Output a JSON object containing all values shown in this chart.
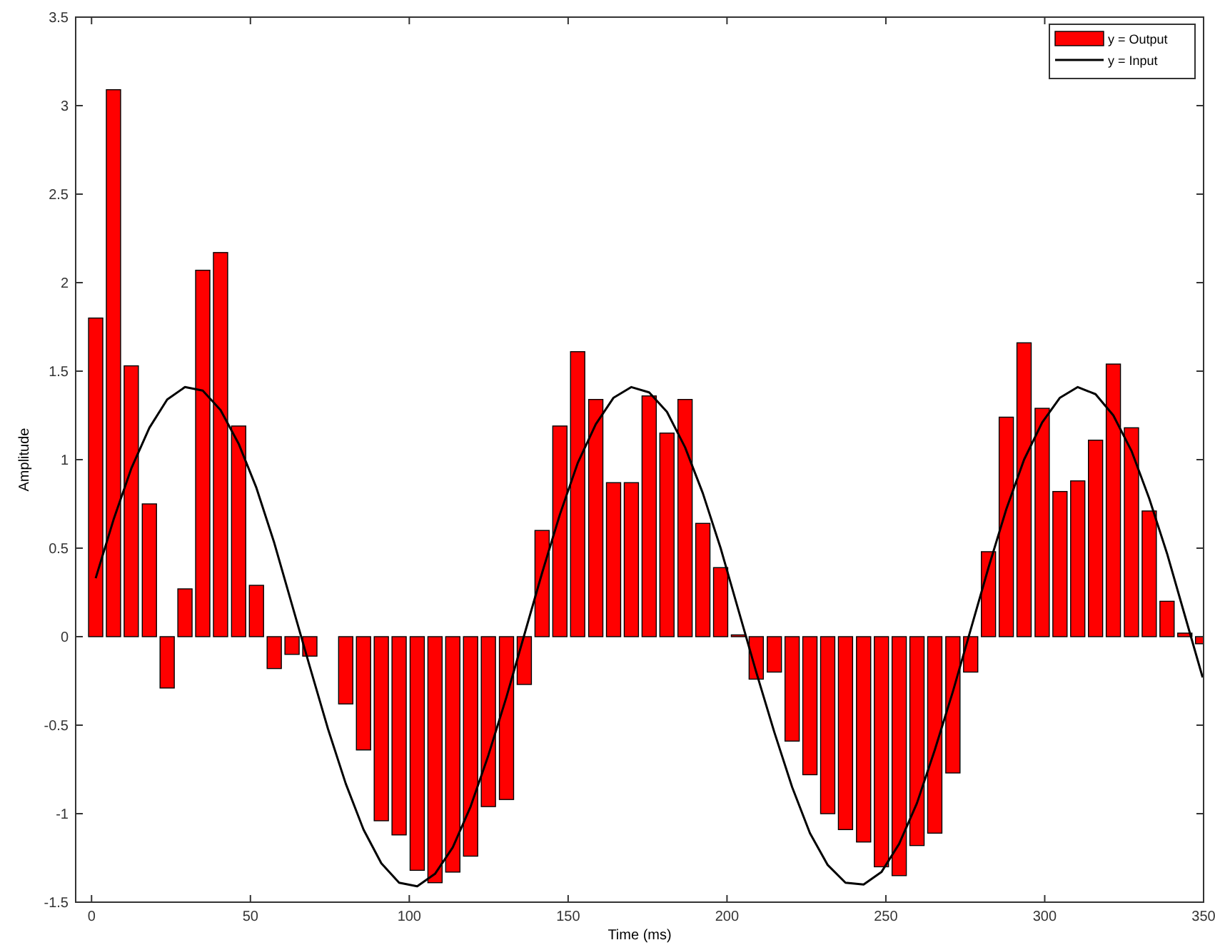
{
  "chart_data": {
    "type": "bar",
    "xlabel": "Time (ms)",
    "ylabel": "Amplitude",
    "x": [
      1.3,
      6.9,
      12.5,
      18.2,
      23.8,
      29.4,
      35.0,
      40.6,
      46.3,
      51.9,
      57.5,
      63.1,
      68.7,
      74.4,
      80.0,
      85.6,
      91.2,
      96.8,
      102.5,
      108.1,
      113.7,
      119.3,
      124.9,
      130.6,
      136.2,
      141.8,
      147.4,
      153.0,
      158.7,
      164.3,
      169.9,
      175.5,
      181.1,
      186.8,
      192.4,
      198.0,
      203.6,
      209.2,
      214.9,
      220.5,
      226.1,
      231.7,
      237.3,
      243.0,
      248.6,
      254.2,
      259.8,
      265.4,
      271.1,
      276.7,
      282.3,
      287.9,
      293.5,
      299.2,
      304.8,
      310.4,
      316.0,
      321.6,
      327.3,
      332.9,
      338.5,
      344.1,
      349.7
    ],
    "series": [
      {
        "name": "y = Output",
        "color": "#ff0000",
        "values": [
          1.8,
          3.09,
          1.53,
          0.75,
          -0.29,
          0.27,
          2.07,
          2.17,
          1.19,
          0.29,
          -0.18,
          -0.1,
          -0.11,
          0.0,
          -0.38,
          -0.64,
          -1.04,
          -1.12,
          -1.32,
          -1.39,
          -1.33,
          -1.24,
          -0.96,
          -0.92,
          -0.27,
          0.6,
          1.19,
          1.61,
          1.34,
          0.87,
          0.87,
          1.36,
          1.15,
          1.34,
          0.64,
          0.39,
          0.01,
          -0.24,
          -0.2,
          -0.59,
          -0.78,
          -1.0,
          -1.09,
          -1.16,
          -1.3,
          -1.35,
          -1.18,
          -1.11,
          -0.77,
          -0.2,
          0.48,
          1.24,
          1.66,
          1.29,
          0.82,
          0.88,
          1.11,
          1.54,
          1.18,
          0.71,
          0.2,
          0.02,
          -0.04
        ]
      },
      {
        "name": "y = Input",
        "type": "line",
        "color": "#000000",
        "values": [
          0.33,
          0.66,
          0.95,
          1.18,
          1.34,
          1.41,
          1.39,
          1.28,
          1.09,
          0.84,
          0.53,
          0.18,
          -0.17,
          -0.52,
          -0.83,
          -1.09,
          -1.28,
          -1.39,
          -1.41,
          -1.34,
          -1.19,
          -0.96,
          -0.67,
          -0.34,
          0.01,
          0.36,
          0.69,
          0.98,
          1.2,
          1.35,
          1.41,
          1.38,
          1.27,
          1.07,
          0.81,
          0.5,
          0.15,
          -0.2,
          -0.54,
          -0.85,
          -1.11,
          -1.29,
          -1.39,
          -1.4,
          -1.33,
          -1.17,
          -0.94,
          -0.64,
          -0.31,
          0.04,
          0.39,
          0.72,
          1.0,
          1.21,
          1.35,
          1.41,
          1.37,
          1.25,
          1.05,
          0.78,
          0.47,
          0.12,
          -0.23
        ]
      }
    ],
    "xlim": [
      -5,
      350
    ],
    "ylim": [
      -1.5,
      3.5
    ],
    "xticks": [
      0,
      50,
      100,
      150,
      200,
      250,
      300,
      350
    ],
    "yticks": [
      -1.5,
      -1,
      -0.5,
      0,
      0.5,
      1,
      1.5,
      2,
      2.5,
      3,
      3.5
    ],
    "legend": "top right"
  }
}
